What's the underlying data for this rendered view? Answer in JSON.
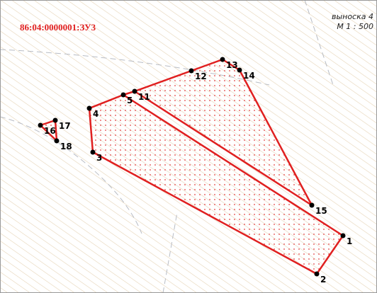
{
  "header": {
    "parcel": "86:04:0000001:ЗУ3",
    "callout": "выноска 4",
    "scale": "М 1 : 500"
  },
  "points": [
    "1",
    "2",
    "3",
    "4",
    "5",
    "11",
    "12",
    "13",
    "14",
    "15",
    "16",
    "17",
    "18"
  ]
}
